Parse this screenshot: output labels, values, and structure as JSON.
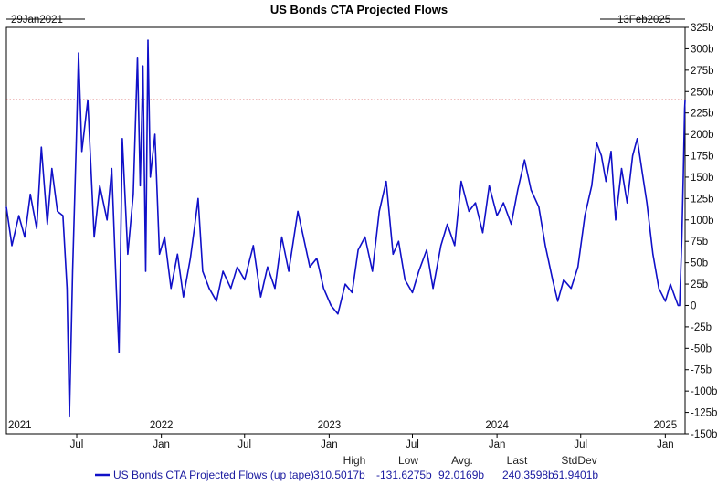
{
  "title": "US Bonds CTA Projected Flows",
  "start_date_label": "29Jan2021",
  "end_date_label": "13Feb2025",
  "colors": {
    "series": "#1010c8",
    "last_line": "#c00000",
    "grid": "#c8c8c8",
    "frame": "#000000"
  },
  "chart_data": {
    "type": "line",
    "title": "US Bonds CTA Projected Flows",
    "x_tick_labels": [
      "Jul",
      "Jan",
      "Jul",
      "Jan",
      "Jul",
      "Jan",
      "Jul",
      "Jan"
    ],
    "x_tick_dates": [
      "2021-07-01",
      "2022-01-01",
      "2022-07-01",
      "2023-01-01",
      "2023-07-01",
      "2024-01-01",
      "2024-07-01",
      "2025-01-01"
    ],
    "year_labels": [
      "2021",
      "2022",
      "2023",
      "2024",
      "2025"
    ],
    "year_label_dates": [
      "2021-01-29",
      "2022-01-01",
      "2023-01-01",
      "2024-01-01",
      "2025-01-01"
    ],
    "xlim": [
      "2021-01-29",
      "2025-02-13"
    ],
    "ylim": [
      -150,
      325
    ],
    "y_ticks": [
      -150,
      -125,
      -100,
      -75,
      -50,
      -25,
      0,
      25,
      50,
      75,
      100,
      125,
      150,
      175,
      200,
      225,
      250,
      275,
      300,
      325
    ],
    "y_tick_labels": [
      "-150b",
      "-125b",
      "-100b",
      "-75b",
      "-50b",
      "-25b",
      "0",
      "25b",
      "50b",
      "75b",
      "100b",
      "125b",
      "150b",
      "175b",
      "200b",
      "225b",
      "250b",
      "275b",
      "300b",
      "325b"
    ],
    "y_axis_side": "right",
    "grid": false,
    "reference_line": {
      "value": 240.36,
      "style": "dotted",
      "color": "#c00000"
    },
    "series": [
      {
        "name": "US Bonds CTA Projected Flows (up tape)",
        "color": "#1010c8",
        "points": [
          [
            "2021-01-29",
            115
          ],
          [
            "2021-02-10",
            70
          ],
          [
            "2021-02-25",
            105
          ],
          [
            "2021-03-10",
            80
          ],
          [
            "2021-03-22",
            130
          ],
          [
            "2021-04-05",
            90
          ],
          [
            "2021-04-15",
            185
          ],
          [
            "2021-04-28",
            95
          ],
          [
            "2021-05-08",
            160
          ],
          [
            "2021-05-20",
            110
          ],
          [
            "2021-06-01",
            105
          ],
          [
            "2021-06-10",
            20
          ],
          [
            "2021-06-15",
            -130
          ],
          [
            "2021-06-22",
            40
          ],
          [
            "2021-06-30",
            190
          ],
          [
            "2021-07-05",
            295
          ],
          [
            "2021-07-12",
            180
          ],
          [
            "2021-07-25",
            240
          ],
          [
            "2021-08-08",
            80
          ],
          [
            "2021-08-20",
            140
          ],
          [
            "2021-09-05",
            100
          ],
          [
            "2021-09-15",
            160
          ],
          [
            "2021-09-25",
            20
          ],
          [
            "2021-10-01",
            -55
          ],
          [
            "2021-10-08",
            195
          ],
          [
            "2021-10-20",
            60
          ],
          [
            "2021-11-01",
            130
          ],
          [
            "2021-11-10",
            290
          ],
          [
            "2021-11-16",
            140
          ],
          [
            "2021-11-22",
            280
          ],
          [
            "2021-11-28",
            40
          ],
          [
            "2021-12-03",
            310
          ],
          [
            "2021-12-08",
            150
          ],
          [
            "2021-12-18",
            200
          ],
          [
            "2021-12-28",
            60
          ],
          [
            "2022-01-08",
            80
          ],
          [
            "2022-01-22",
            20
          ],
          [
            "2022-02-05",
            60
          ],
          [
            "2022-02-18",
            10
          ],
          [
            "2022-03-05",
            55
          ],
          [
            "2022-03-15",
            95
          ],
          [
            "2022-03-22",
            125
          ],
          [
            "2022-04-01",
            40
          ],
          [
            "2022-04-15",
            20
          ],
          [
            "2022-05-01",
            5
          ],
          [
            "2022-05-15",
            40
          ],
          [
            "2022-06-01",
            20
          ],
          [
            "2022-06-15",
            45
          ],
          [
            "2022-07-01",
            30
          ],
          [
            "2022-07-20",
            70
          ],
          [
            "2022-08-05",
            10
          ],
          [
            "2022-08-20",
            45
          ],
          [
            "2022-09-05",
            20
          ],
          [
            "2022-09-20",
            80
          ],
          [
            "2022-10-05",
            40
          ],
          [
            "2022-10-25",
            110
          ],
          [
            "2022-11-08",
            75
          ],
          [
            "2022-11-20",
            45
          ],
          [
            "2022-12-05",
            55
          ],
          [
            "2022-12-20",
            20
          ],
          [
            "2023-01-05",
            0
          ],
          [
            "2023-01-20",
            -10
          ],
          [
            "2023-02-05",
            25
          ],
          [
            "2023-02-20",
            15
          ],
          [
            "2023-03-05",
            65
          ],
          [
            "2023-03-20",
            80
          ],
          [
            "2023-04-05",
            40
          ],
          [
            "2023-04-20",
            110
          ],
          [
            "2023-05-05",
            145
          ],
          [
            "2023-05-20",
            60
          ],
          [
            "2023-06-01",
            75
          ],
          [
            "2023-06-15",
            30
          ],
          [
            "2023-07-01",
            15
          ],
          [
            "2023-07-15",
            40
          ],
          [
            "2023-08-01",
            65
          ],
          [
            "2023-08-15",
            20
          ],
          [
            "2023-09-01",
            70
          ],
          [
            "2023-09-15",
            95
          ],
          [
            "2023-10-01",
            70
          ],
          [
            "2023-10-15",
            145
          ],
          [
            "2023-11-01",
            110
          ],
          [
            "2023-11-15",
            120
          ],
          [
            "2023-12-01",
            85
          ],
          [
            "2023-12-15",
            140
          ],
          [
            "2024-01-01",
            105
          ],
          [
            "2024-01-15",
            120
          ],
          [
            "2024-02-01",
            95
          ],
          [
            "2024-02-15",
            135
          ],
          [
            "2024-03-01",
            170
          ],
          [
            "2024-03-15",
            135
          ],
          [
            "2024-04-01",
            115
          ],
          [
            "2024-04-15",
            70
          ],
          [
            "2024-05-01",
            30
          ],
          [
            "2024-05-12",
            5
          ],
          [
            "2024-05-25",
            30
          ],
          [
            "2024-06-10",
            20
          ],
          [
            "2024-06-25",
            45
          ],
          [
            "2024-07-10",
            105
          ],
          [
            "2024-07-25",
            140
          ],
          [
            "2024-08-05",
            190
          ],
          [
            "2024-08-15",
            175
          ],
          [
            "2024-08-25",
            145
          ],
          [
            "2024-09-05",
            180
          ],
          [
            "2024-09-15",
            100
          ],
          [
            "2024-09-28",
            160
          ],
          [
            "2024-10-10",
            120
          ],
          [
            "2024-10-22",
            175
          ],
          [
            "2024-11-01",
            195
          ],
          [
            "2024-11-12",
            155
          ],
          [
            "2024-11-22",
            120
          ],
          [
            "2024-12-05",
            60
          ],
          [
            "2024-12-18",
            20
          ],
          [
            "2025-01-01",
            5
          ],
          [
            "2025-01-12",
            25
          ],
          [
            "2025-01-22",
            10
          ],
          [
            "2025-01-29",
            0
          ],
          [
            "2025-02-01",
            0
          ],
          [
            "2025-02-06",
            80
          ],
          [
            "2025-02-09",
            150
          ],
          [
            "2025-02-12",
            230
          ],
          [
            "2025-02-13",
            240.36
          ]
        ]
      }
    ]
  },
  "stats": {
    "headers": [
      "High",
      "Low",
      "Avg.",
      "Last",
      "StdDev"
    ],
    "legend_label": "US Bonds CTA Projected Flows (up tape)",
    "high": "310.5017b",
    "low": "-131.6275b",
    "avg": "92.0169b",
    "last": "240.3598b",
    "stddev": "61.9401b"
  }
}
